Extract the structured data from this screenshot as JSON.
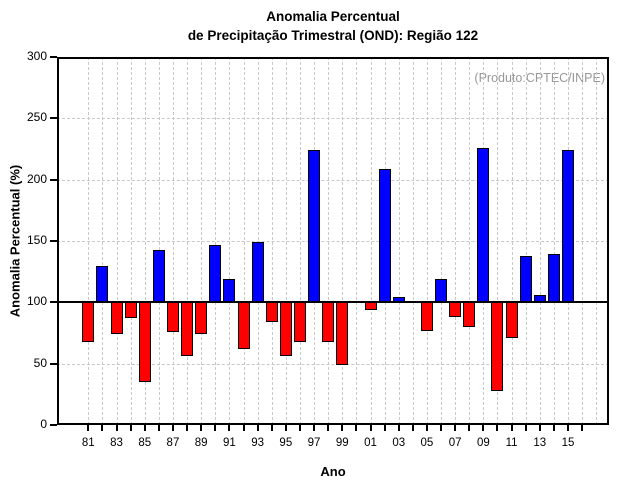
{
  "header": {
    "title_line1": "Anomalia Percentual",
    "title_line2": "de Precipitação Trimestral (OND): Região 122"
  },
  "annotation": {
    "text": "(Produto:CPTEC/INPE)",
    "color": "#989898"
  },
  "chart_data": {
    "type": "bar",
    "title": "Anomalia Percentual de Precipitação Trimestral (OND): Região 122",
    "xlabel": "Ano",
    "ylabel": "Anomalia Percentual (%)",
    "ylim": [
      0,
      300
    ],
    "yticks": [
      0,
      50,
      100,
      150,
      200,
      250,
      300
    ],
    "baseline_value": 100,
    "legend": "none",
    "grid": {
      "style": "dashed",
      "color": "#c8c8c8",
      "horizontal_at": [
        50,
        150,
        200,
        250
      ],
      "vertical": "every year tick"
    },
    "bar_colors": {
      "above_baseline": "#0000ff",
      "below_baseline": "#ff0000",
      "outline": "#000000"
    },
    "categories": [
      "81",
      "82",
      "83",
      "84",
      "85",
      "86",
      "87",
      "88",
      "89",
      "90",
      "91",
      "92",
      "93",
      "94",
      "95",
      "96",
      "97",
      "98",
      "99",
      "00",
      "01",
      "02",
      "03",
      "04",
      "05",
      "06",
      "07",
      "08",
      "09",
      "10",
      "11",
      "12",
      "13",
      "14",
      "15"
    ],
    "values": [
      68,
      130,
      74,
      87,
      35,
      143,
      76,
      56,
      74,
      147,
      119,
      62,
      149,
      84,
      56,
      68,
      224,
      68,
      49,
      101,
      94,
      209,
      104,
      null,
      77,
      119,
      88,
      80,
      226,
      28,
      71,
      138,
      106,
      139,
      224
    ],
    "labeled_ticks": [
      "81",
      "83",
      "85",
      "87",
      "89",
      "91",
      "93",
      "95",
      "97",
      "99",
      "01",
      "03",
      "05",
      "07",
      "09",
      "11",
      "13",
      "15"
    ]
  }
}
